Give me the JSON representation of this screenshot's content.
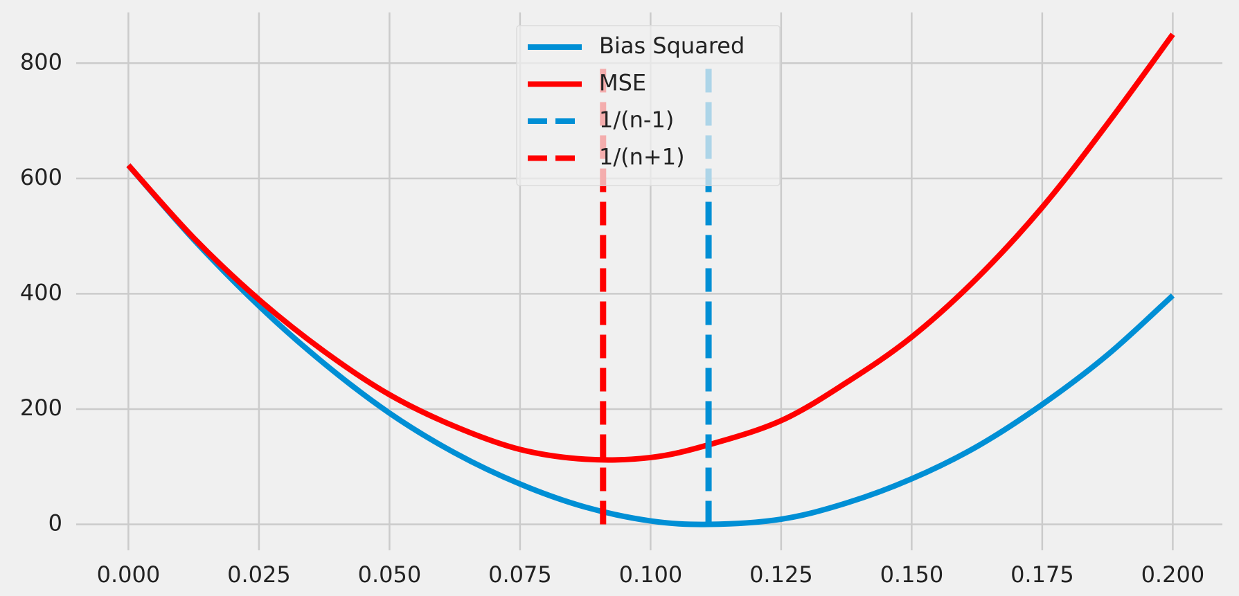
{
  "chart_data": {
    "type": "line",
    "title": "",
    "xlabel": "",
    "ylabel": "",
    "xlim": [
      -0.01,
      0.2095
    ],
    "ylim": [
      -45,
      888
    ],
    "grid": true,
    "background": "#f0f0f0",
    "grid_color": "#cbcbcb",
    "x_ticks": [
      {
        "value": 0.0,
        "label": "0.000"
      },
      {
        "value": 0.025,
        "label": "0.025"
      },
      {
        "value": 0.05,
        "label": "0.050"
      },
      {
        "value": 0.075,
        "label": "0.075"
      },
      {
        "value": 0.1,
        "label": "0.100"
      },
      {
        "value": 0.125,
        "label": "0.125"
      },
      {
        "value": 0.15,
        "label": "0.150"
      },
      {
        "value": 0.175,
        "label": "0.175"
      },
      {
        "value": 0.2,
        "label": "0.200"
      }
    ],
    "y_ticks": [
      {
        "value": 0,
        "label": "0"
      },
      {
        "value": 200,
        "label": "200"
      },
      {
        "value": 400,
        "label": "400"
      },
      {
        "value": 600,
        "label": "600"
      },
      {
        "value": 800,
        "label": "800"
      }
    ],
    "x": [
      0.0,
      0.0125,
      0.025,
      0.0375,
      0.05,
      0.0625,
      0.075,
      0.0875,
      0.1,
      0.1111,
      0.125,
      0.1375,
      0.15,
      0.1625,
      0.175,
      0.1875,
      0.2
    ],
    "series": [
      {
        "name": "Bias Squared",
        "color": "#008fd5",
        "style": "solid",
        "values": [
          623,
          494,
          379,
          279,
          193,
          124,
          70,
          30,
          6,
          0,
          9,
          37,
          79,
          135,
          208,
          294,
          397
        ]
      },
      {
        "name": "MSE",
        "color": "#ff0000",
        "style": "solid",
        "values": [
          623,
          497,
          390,
          300,
          225,
          170,
          130,
          113,
          116,
          138,
          180,
          246,
          325,
          427,
          550,
          695,
          850
        ]
      },
      {
        "name": "1/(n-1)",
        "color": "#008fd5",
        "style": "dashed",
        "vline_x": 0.1111,
        "vline_from": 0,
        "vline_to": 800
      },
      {
        "name": "1/(n+1)",
        "color": "#ff0000",
        "style": "dashed",
        "vline_x": 0.0909,
        "vline_from": 0,
        "vline_to": 800
      }
    ],
    "legend": {
      "position": "upper center",
      "entries": [
        {
          "label": "Bias Squared",
          "color": "#008fd5",
          "style": "solid"
        },
        {
          "label": "MSE",
          "color": "#ff0000",
          "style": "solid"
        },
        {
          "label": "1/(n-1)",
          "color": "#008fd5",
          "style": "dashed"
        },
        {
          "label": "1/(n+1)",
          "color": "#ff0000",
          "style": "dashed"
        }
      ]
    }
  }
}
